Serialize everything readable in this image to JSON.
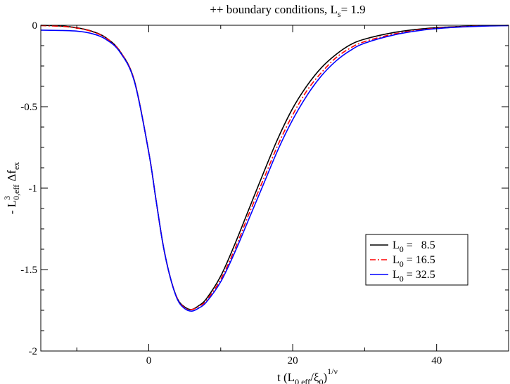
{
  "chart_data": {
    "type": "line",
    "title": {
      "prefix": "++ boundary conditions, L",
      "sub": "s",
      "suffix": "= 1.9"
    },
    "xlabel": {
      "prefix": "t (L",
      "sub1": "0,eff",
      "mid": "/ξ",
      "sub2": "0",
      "close": ")",
      "sup": "1/ν"
    },
    "ylabel": {
      "prefix": "- L",
      "sup": "3",
      "sub": "0,eff",
      "mid": " Δf",
      "sub2": "ex"
    },
    "xlim": [
      -15,
      50
    ],
    "ylim": [
      -2,
      0
    ],
    "xticks": [
      0,
      20,
      40
    ],
    "xtick_labels": [
      "0",
      "20",
      "40"
    ],
    "yticks": [
      0,
      -0.5,
      -1,
      -1.5,
      -2
    ],
    "ytick_labels": [
      "0",
      "-0.5",
      "-1",
      "-1.5",
      "-2"
    ],
    "grid": false,
    "legend_position": "bottom-right",
    "series": [
      {
        "label_prefix": "L",
        "label_sub": "0",
        "label_value": " =   8.5",
        "color": "#000000",
        "dash": "solid",
        "x": [
          -15,
          -12,
          -10,
          -8,
          -6,
          -4,
          -2,
          0,
          1,
          2,
          3,
          4,
          5,
          6,
          7,
          8,
          10,
          12,
          14,
          16,
          18,
          20,
          22,
          24,
          26,
          28,
          30,
          34,
          38,
          42,
          46,
          50
        ],
        "y": [
          0,
          -0.005,
          -0.015,
          -0.035,
          -0.075,
          -0.16,
          -0.34,
          -0.78,
          -1.07,
          -1.35,
          -1.55,
          -1.68,
          -1.73,
          -1.745,
          -1.72,
          -1.68,
          -1.54,
          -1.34,
          -1.12,
          -0.9,
          -0.69,
          -0.51,
          -0.37,
          -0.26,
          -0.18,
          -0.12,
          -0.085,
          -0.045,
          -0.022,
          -0.01,
          -0.004,
          -0.001
        ]
      },
      {
        "label_prefix": "L",
        "label_sub": "0",
        "label_value": " = 16.5",
        "color": "#ff0000",
        "dash": "dashdot",
        "x": [
          -15,
          -12,
          -10,
          -8,
          -6,
          -4,
          -2,
          0,
          1,
          2,
          3,
          4,
          5,
          6,
          7,
          8,
          10,
          12,
          14,
          16,
          18,
          20,
          22,
          24,
          26,
          28,
          30,
          34,
          38,
          42,
          46,
          50
        ],
        "y": [
          -0.002,
          -0.007,
          -0.017,
          -0.037,
          -0.077,
          -0.16,
          -0.34,
          -0.78,
          -1.07,
          -1.35,
          -1.55,
          -1.68,
          -1.735,
          -1.745,
          -1.725,
          -1.69,
          -1.56,
          -1.37,
          -1.15,
          -0.94,
          -0.73,
          -0.55,
          -0.4,
          -0.29,
          -0.2,
          -0.14,
          -0.1,
          -0.054,
          -0.026,
          -0.012,
          -0.005,
          -0.001
        ]
      },
      {
        "label_prefix": "L",
        "label_sub": "0",
        "label_value": " = 32.5",
        "color": "#0000ff",
        "dash": "solid",
        "x": [
          -15,
          -12,
          -10,
          -8,
          -6,
          -4,
          -2,
          0,
          1,
          2,
          3,
          4,
          5,
          6,
          7,
          8,
          10,
          12,
          14,
          16,
          18,
          20,
          22,
          24,
          26,
          28,
          30,
          34,
          38,
          42,
          46,
          50
        ],
        "y": [
          -0.03,
          -0.032,
          -0.036,
          -0.05,
          -0.085,
          -0.165,
          -0.345,
          -0.78,
          -1.07,
          -1.35,
          -1.55,
          -1.685,
          -1.74,
          -1.755,
          -1.735,
          -1.7,
          -1.575,
          -1.39,
          -1.18,
          -0.97,
          -0.76,
          -0.58,
          -0.43,
          -0.31,
          -0.22,
          -0.155,
          -0.11,
          -0.06,
          -0.03,
          -0.014,
          -0.006,
          -0.002
        ]
      }
    ]
  }
}
